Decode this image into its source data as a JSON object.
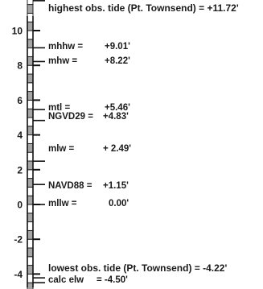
{
  "staff": {
    "ticks": [
      {
        "value": 10,
        "label": "10"
      },
      {
        "value": 8,
        "label": "8"
      },
      {
        "value": 6,
        "label": "6"
      },
      {
        "value": 4,
        "label": "4"
      },
      {
        "value": 2,
        "label": "2"
      },
      {
        "value": 0,
        "label": "0"
      },
      {
        "value": -2,
        "label": "-2"
      },
      {
        "value": -4,
        "label": "-4"
      }
    ],
    "range": [
      -5,
      12
    ],
    "fill_color": "#a6a6a6",
    "line_color": "#111111"
  },
  "levels": [
    {
      "id": "highest-obs",
      "value": 11.72,
      "name": "highest obs. tide (Pt. Townsend) =",
      "amount": "+11.72'"
    },
    {
      "id": "mhhw",
      "value": 9.01,
      "name": "mhhw =",
      "amount": "+9.01'"
    },
    {
      "id": "mhw",
      "value": 8.22,
      "name": "mhw =",
      "amount": "+8.22'"
    },
    {
      "id": "mtl",
      "value": 5.46,
      "name": "mtl =",
      "amount": "+5.46'"
    },
    {
      "id": "ngvd29",
      "value": 4.83,
      "name": "NGVD29 =",
      "amount": "+4.83'"
    },
    {
      "id": "mlw",
      "value": 2.49,
      "name": "mlw =",
      "amount": "+ 2.49'"
    },
    {
      "id": "navd88",
      "value": 1.15,
      "name": "NAVD88 =",
      "amount": "+1.15'"
    },
    {
      "id": "mllw",
      "value": 0.0,
      "name": "mllw =",
      "amount": "0.00'"
    },
    {
      "id": "lowest-obs",
      "value": -4.22,
      "name": "lowest obs. tide (Pt. Townsend) =",
      "amount": "-4.22'"
    },
    {
      "id": "calc-elw",
      "value": -4.5,
      "name": "calc elw",
      "amount": "= -4.50'"
    }
  ]
}
